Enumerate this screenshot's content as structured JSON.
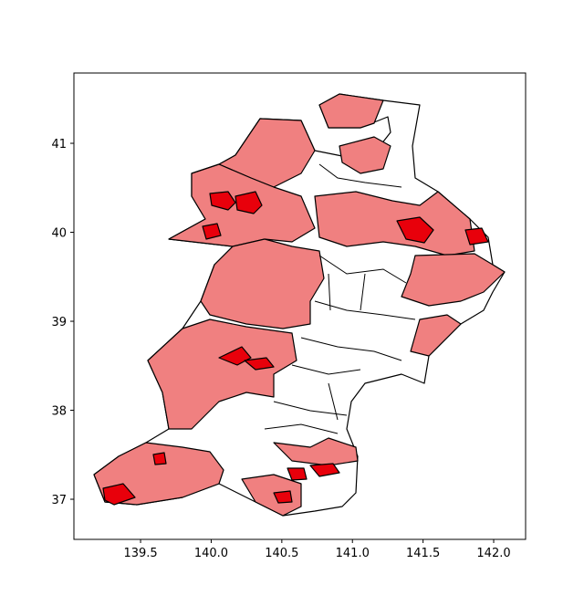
{
  "chart_data": {
    "type": "map",
    "xlim": [
      139.028,
      142.226
    ],
    "ylim": [
      36.549,
      41.79
    ],
    "xticks": [
      139.5,
      {
        "value": 140,
        "label": "140.0"
      },
      140.5,
      {
        "value": 141,
        "label": "141.0"
      },
      141.5,
      {
        "value": 142,
        "label": "142.0"
      }
    ],
    "yticks": [
      37,
      38,
      39,
      40,
      41
    ]
  }
}
